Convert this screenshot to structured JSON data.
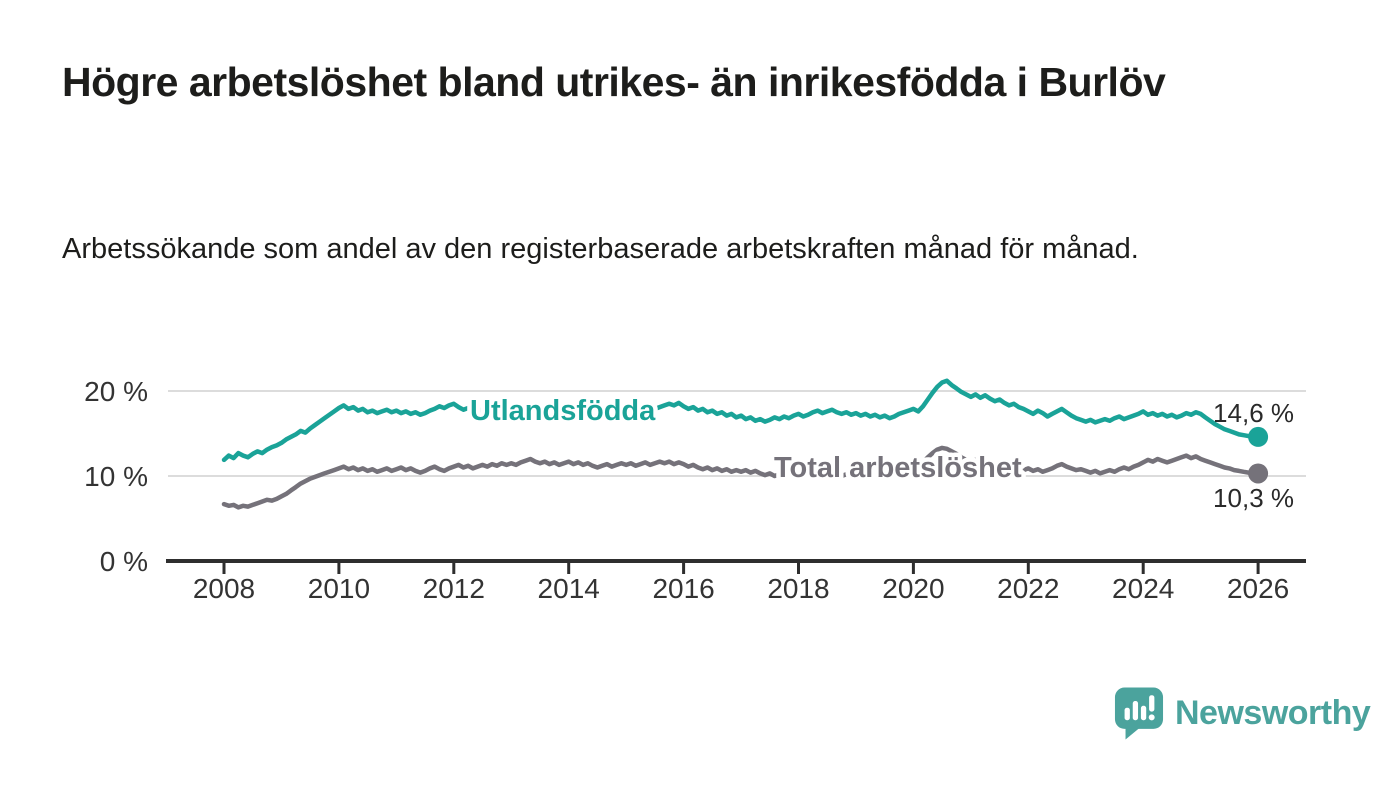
{
  "header": {
    "title": "Högre arbetslöshet bland utrikes- än inrikesfödda i Burlöv",
    "subtitle": "Arbetssökande som andel av den registerbaserade arbetskraften månad för månad."
  },
  "branding": {
    "logo_text": "Newsworthy",
    "logo_color": "#4ba39d",
    "logo_icon": "speech-bubble-bar-chart-icon"
  },
  "chart_data": {
    "type": "line",
    "title": "Högre arbetslöshet bland utrikes- än inrikesfödda i Burlöv",
    "xlabel": "",
    "ylabel": "",
    "x_start": "2008-01",
    "x_end": "2026-01",
    "x_step_months": 1,
    "xlim": [
      2007.0,
      2026.85
    ],
    "ylim": [
      0,
      23.5
    ],
    "grid": "horizontal",
    "x_ticks": [
      2008,
      2010,
      2012,
      2014,
      2016,
      2018,
      2020,
      2022,
      2024,
      2026
    ],
    "y_ticks": [
      {
        "value": 20,
        "label": "20 %"
      },
      {
        "value": 10,
        "label": "10 %"
      },
      {
        "value": 0,
        "label": "0 %"
      }
    ],
    "colors": {
      "gridline": "#dcdcdc",
      "axis": "#2e2e2e",
      "tick_text": "#333333"
    },
    "series": [
      {
        "name": "Utlandsfödda",
        "color": "#1aa398",
        "end_label": "14,6 %",
        "end_value": 14.6,
        "values": [
          11.9,
          12.4,
          12.1,
          12.7,
          12.4,
          12.2,
          12.6,
          12.9,
          12.7,
          13.1,
          13.4,
          13.6,
          13.9,
          14.3,
          14.6,
          14.9,
          15.3,
          15.1,
          15.6,
          16.0,
          16.4,
          16.8,
          17.2,
          17.6,
          18.0,
          18.3,
          17.9,
          18.1,
          17.7,
          17.9,
          17.5,
          17.7,
          17.4,
          17.6,
          17.8,
          17.5,
          17.7,
          17.4,
          17.6,
          17.3,
          17.5,
          17.2,
          17.4,
          17.7,
          17.9,
          18.2,
          18.0,
          18.3,
          18.5,
          18.1,
          17.8,
          18.0,
          17.7,
          17.9,
          17.6,
          17.8,
          17.5,
          17.7,
          17.4,
          17.6,
          17.8,
          18.0,
          17.7,
          17.9,
          18.1,
          17.8,
          18.0,
          17.7,
          17.5,
          17.7,
          17.9,
          17.6,
          17.8,
          17.5,
          17.7,
          17.4,
          17.6,
          17.3,
          17.5,
          17.2,
          17.4,
          17.6,
          17.8,
          18.0,
          18.2,
          17.9,
          18.1,
          17.8,
          18.0,
          17.7,
          17.9,
          18.1,
          18.3,
          18.5,
          18.3,
          18.6,
          18.2,
          17.9,
          18.1,
          17.7,
          17.9,
          17.5,
          17.7,
          17.3,
          17.5,
          17.1,
          17.3,
          16.9,
          17.1,
          16.7,
          16.9,
          16.5,
          16.7,
          16.4,
          16.6,
          16.9,
          16.7,
          17.0,
          16.8,
          17.1,
          17.3,
          17.0,
          17.2,
          17.5,
          17.7,
          17.4,
          17.6,
          17.8,
          17.5,
          17.3,
          17.5,
          17.2,
          17.4,
          17.1,
          17.3,
          17.0,
          17.2,
          16.9,
          17.1,
          16.8,
          17.0,
          17.3,
          17.5,
          17.7,
          17.9,
          17.6,
          18.2,
          19.0,
          19.8,
          20.5,
          21.0,
          21.2,
          20.7,
          20.3,
          19.9,
          19.6,
          19.3,
          19.6,
          19.2,
          19.5,
          19.1,
          18.8,
          19.0,
          18.6,
          18.3,
          18.5,
          18.1,
          17.9,
          17.6,
          17.3,
          17.7,
          17.4,
          17.0,
          17.3,
          17.6,
          17.9,
          17.5,
          17.1,
          16.8,
          16.6,
          16.4,
          16.6,
          16.3,
          16.5,
          16.7,
          16.5,
          16.8,
          17.0,
          16.7,
          16.9,
          17.1,
          17.3,
          17.6,
          17.2,
          17.4,
          17.1,
          17.3,
          17.0,
          17.2,
          16.9,
          17.1,
          17.4,
          17.2,
          17.5,
          17.3,
          16.9,
          16.5,
          16.1,
          15.8,
          15.5,
          15.3,
          15.1,
          14.9,
          14.8,
          14.7,
          14.6,
          14.6
        ]
      },
      {
        "name": "Total arbetslöshet",
        "color": "#75727a",
        "end_label": "10,3 %",
        "end_value": 10.3,
        "values": [
          6.7,
          6.5,
          6.6,
          6.3,
          6.5,
          6.4,
          6.6,
          6.8,
          7.0,
          7.2,
          7.1,
          7.3,
          7.6,
          7.9,
          8.3,
          8.7,
          9.1,
          9.4,
          9.7,
          9.9,
          10.1,
          10.3,
          10.5,
          10.7,
          10.9,
          11.1,
          10.8,
          11.0,
          10.7,
          10.9,
          10.6,
          10.8,
          10.5,
          10.7,
          10.9,
          10.6,
          10.8,
          11.0,
          10.7,
          10.9,
          10.6,
          10.4,
          10.6,
          10.9,
          11.1,
          10.8,
          10.6,
          10.9,
          11.1,
          11.3,
          11.0,
          11.2,
          10.9,
          11.1,
          11.3,
          11.1,
          11.4,
          11.2,
          11.5,
          11.3,
          11.5,
          11.3,
          11.6,
          11.8,
          12.0,
          11.7,
          11.5,
          11.7,
          11.4,
          11.6,
          11.3,
          11.5,
          11.7,
          11.4,
          11.6,
          11.3,
          11.5,
          11.2,
          11.0,
          11.2,
          11.4,
          11.1,
          11.3,
          11.5,
          11.3,
          11.5,
          11.2,
          11.4,
          11.6,
          11.3,
          11.5,
          11.7,
          11.5,
          11.7,
          11.4,
          11.6,
          11.4,
          11.1,
          11.3,
          11.0,
          10.8,
          11.0,
          10.7,
          10.9,
          10.6,
          10.8,
          10.5,
          10.7,
          10.5,
          10.7,
          10.4,
          10.6,
          10.3,
          10.1,
          10.3,
          10.0,
          10.2,
          10.4,
          10.1,
          10.3,
          10.2,
          10.4,
          10.1,
          10.3,
          10.5,
          10.2,
          10.4,
          10.1,
          10.3,
          10.0,
          10.2,
          10.4,
          10.3,
          10.1,
          10.3,
          10.0,
          10.2,
          10.4,
          10.2,
          10.4,
          10.6,
          10.4,
          10.6,
          10.8,
          11.0,
          11.2,
          11.6,
          12.2,
          12.7,
          13.1,
          13.3,
          13.2,
          12.9,
          12.6,
          12.2,
          11.9,
          11.7,
          11.9,
          11.6,
          11.4,
          11.6,
          11.3,
          11.1,
          11.3,
          11.0,
          10.8,
          11.0,
          10.7,
          10.9,
          10.6,
          10.8,
          10.5,
          10.7,
          10.9,
          11.2,
          11.4,
          11.1,
          10.9,
          10.7,
          10.8,
          10.6,
          10.4,
          10.6,
          10.3,
          10.5,
          10.7,
          10.5,
          10.8,
          11.0,
          10.8,
          11.1,
          11.3,
          11.6,
          11.9,
          11.7,
          12.0,
          11.8,
          11.6,
          11.8,
          12.0,
          12.2,
          12.4,
          12.1,
          12.3,
          12.0,
          11.8,
          11.6,
          11.4,
          11.2,
          11.0,
          10.9,
          10.7,
          10.6,
          10.5,
          10.4,
          10.3,
          10.3
        ]
      }
    ]
  }
}
